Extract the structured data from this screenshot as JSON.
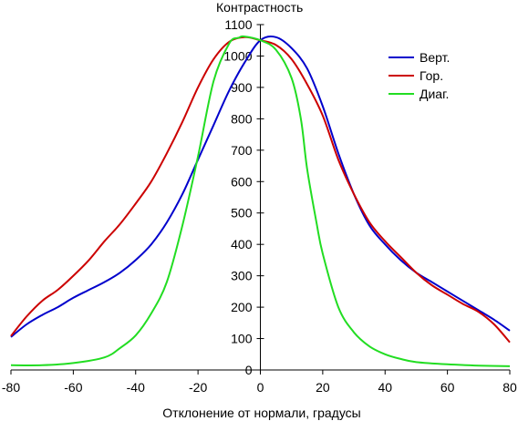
{
  "chart_data": {
    "type": "line",
    "title": "",
    "xlabel": "Отклонение от нормали, градусы",
    "ylabel": "Контрастность",
    "xlim": [
      -80,
      80
    ],
    "ylim": [
      0,
      1100
    ],
    "xticks": [
      -80,
      -60,
      -40,
      -20,
      0,
      20,
      40,
      60,
      80
    ],
    "yticks": [
      0,
      100,
      200,
      300,
      400,
      500,
      600,
      700,
      800,
      900,
      1000,
      1100
    ],
    "grid": false,
    "legend_position": "top-right",
    "series": [
      {
        "name": "Верт.",
        "color": "#0000cc",
        "x": [
          -80,
          -75,
          -70,
          -65,
          -60,
          -55,
          -50,
          -45,
          -40,
          -35,
          -30,
          -25,
          -20,
          -15,
          -10,
          -5,
          0,
          5,
          10,
          15,
          20,
          25,
          30,
          35,
          40,
          45,
          50,
          55,
          60,
          65,
          70,
          75,
          80
        ],
        "y": [
          105,
          145,
          175,
          200,
          230,
          255,
          280,
          310,
          350,
          400,
          470,
          560,
          670,
          780,
          890,
          980,
          1050,
          1060,
          1025,
          960,
          840,
          690,
          560,
          460,
          400,
          350,
          310,
          280,
          250,
          220,
          190,
          160,
          125
        ]
      },
      {
        "name": "Гор.",
        "color": "#cc0000",
        "x": [
          -80,
          -75,
          -70,
          -65,
          -60,
          -55,
          -50,
          -45,
          -40,
          -35,
          -30,
          -25,
          -20,
          -15,
          -10,
          -5,
          0,
          5,
          10,
          15,
          20,
          25,
          30,
          35,
          40,
          45,
          50,
          55,
          60,
          65,
          70,
          75,
          80
        ],
        "y": [
          108,
          170,
          220,
          255,
          300,
          350,
          410,
          465,
          530,
          600,
          690,
          790,
          900,
          990,
          1045,
          1060,
          1050,
          1035,
          990,
          910,
          810,
          670,
          560,
          470,
          410,
          360,
          310,
          270,
          240,
          210,
          185,
          145,
          88
        ]
      },
      {
        "name": "Диаг.",
        "color": "#22dd22",
        "x": [
          -80,
          -70,
          -60,
          -50,
          -45,
          -40,
          -35,
          -30,
          -25,
          -20,
          -15,
          -10,
          -7,
          -5,
          0,
          5,
          10,
          13,
          15,
          18,
          20,
          25,
          30,
          35,
          40,
          45,
          50,
          60,
          70,
          80
        ],
        "y": [
          15,
          15,
          22,
          40,
          70,
          110,
          180,
          280,
          460,
          680,
          920,
          1040,
          1058,
          1062,
          1050,
          1020,
          930,
          800,
          640,
          470,
          370,
          200,
          120,
          75,
          50,
          35,
          25,
          18,
          14,
          12
        ]
      }
    ]
  }
}
